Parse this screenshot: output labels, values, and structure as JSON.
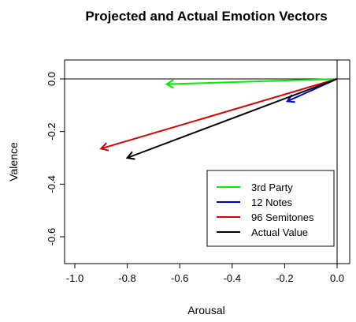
{
  "chart_data": {
    "type": "line",
    "title": "Projected and Actual Emotion Vectors",
    "xlabel": "Arousal",
    "ylabel": "Valence",
    "xlim": [
      -1.0,
      0.0
    ],
    "ylim": [
      -0.65,
      0.05
    ],
    "x_ticks": [
      -1.0,
      -0.8,
      -0.6,
      -0.4,
      -0.2,
      0.0
    ],
    "x_tick_labels": [
      "-1.0",
      "-0.8",
      "-0.6",
      "-0.4",
      "-0.2",
      "0.0"
    ],
    "y_ticks": [
      0.0,
      -0.2,
      -0.4,
      -0.6
    ],
    "y_tick_labels": [
      "0.0",
      "-0.2",
      "-0.4",
      "-0.6"
    ],
    "reference_lines": {
      "horizontal_at_y": 0.0,
      "vertical_at_x": 0.0
    },
    "legend_position": "bottom-right",
    "series": [
      {
        "name": "3rd Party",
        "color": "#00ee00",
        "from": [
          0.0,
          0.0
        ],
        "to": [
          -0.65,
          -0.02
        ]
      },
      {
        "name": "12 Notes",
        "color": "#0000cc",
        "from": [
          0.0,
          0.0
        ],
        "to": [
          -0.19,
          -0.085
        ]
      },
      {
        "name": "96 Semitones",
        "color": "#dd0000",
        "from": [
          0.0,
          0.0
        ],
        "to": [
          -0.9,
          -0.265
        ]
      },
      {
        "name": "Actual Value",
        "color": "#000000",
        "from": [
          0.0,
          0.0
        ],
        "to": [
          -0.8,
          -0.3
        ]
      }
    ]
  }
}
